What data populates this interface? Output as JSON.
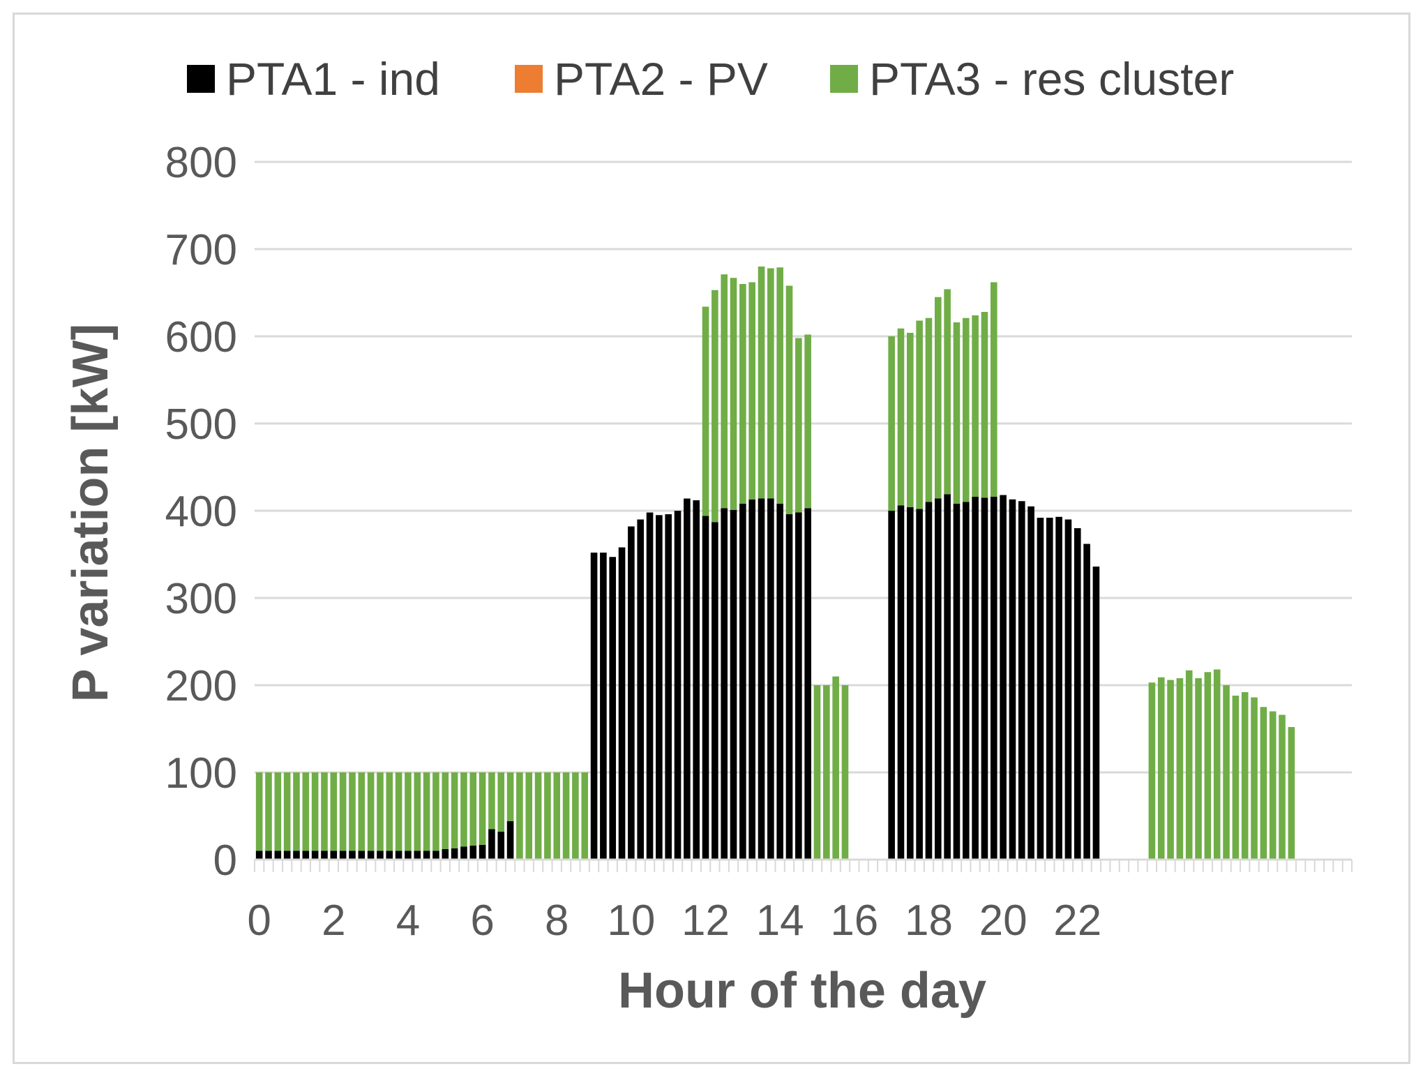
{
  "chart_data": {
    "type": "bar",
    "stacked": true,
    "title": "",
    "xlabel": "Hour of the day",
    "ylabel": "P variation [kW]",
    "ylim": [
      0,
      800
    ],
    "yticks": [
      0,
      100,
      200,
      300,
      400,
      500,
      600,
      700,
      800
    ],
    "xticks": [
      "0",
      "2",
      "4",
      "6",
      "8",
      "10",
      "12",
      "14",
      "16",
      "18",
      "20",
      "22"
    ],
    "intervals_per_hour": 4,
    "legend_position": "top",
    "grid": true,
    "colors": {
      "PTA1 - ind": "#000000",
      "PTA2 - PV": "#ed7d31",
      "PTA3 - res cluster": "#70ad47"
    },
    "series": [
      {
        "name": "PTA1 - ind",
        "values": [
          10,
          10,
          10,
          10,
          10,
          10,
          10,
          10,
          10,
          10,
          10,
          10,
          10,
          10,
          10,
          10,
          10,
          10,
          10,
          10,
          12,
          13,
          15,
          16,
          17,
          35,
          32,
          44,
          0,
          0,
          0,
          0,
          0,
          0,
          0,
          0,
          352,
          352,
          347,
          358,
          382,
          390,
          398,
          395,
          396,
          400,
          414,
          412,
          394,
          387,
          403,
          401,
          408,
          413,
          414,
          414,
          408,
          396,
          398,
          403,
          0,
          0,
          0,
          0,
          0,
          0,
          0,
          0,
          400,
          406,
          404,
          402,
          410,
          414,
          419,
          408,
          410,
          416,
          415,
          416,
          418,
          413,
          411,
          405,
          392,
          392,
          393,
          390,
          380,
          362,
          336,
          0,
          0,
          0,
          0,
          0,
          0,
          0,
          0,
          0,
          0,
          0,
          0,
          0,
          0,
          0,
          0,
          0,
          0,
          0,
          0,
          0,
          0,
          0,
          0,
          0,
          0,
          0
        ]
      },
      {
        "name": "PTA2 - PV",
        "values": [
          0,
          0,
          0,
          0,
          0,
          0,
          0,
          0,
          0,
          0,
          0,
          0,
          0,
          0,
          0,
          0,
          0,
          0,
          0,
          0,
          0,
          0,
          0,
          0,
          0,
          0,
          0,
          0,
          0,
          0,
          0,
          0,
          0,
          0,
          0,
          0,
          0,
          0,
          0,
          0,
          0,
          0,
          0,
          0,
          0,
          0,
          0,
          0,
          0,
          0,
          0,
          0,
          0,
          0,
          0,
          0,
          0,
          0,
          0,
          0,
          0,
          0,
          0,
          0,
          0,
          0,
          0,
          0,
          0,
          0,
          0,
          0,
          0,
          0,
          0,
          0,
          0,
          0,
          0,
          0,
          0,
          0,
          0,
          0,
          0,
          0,
          0,
          0,
          0,
          0,
          0,
          0,
          0,
          0,
          0,
          0,
          0,
          0,
          0,
          0,
          0,
          0,
          0,
          0,
          0,
          0,
          0,
          0,
          0,
          0,
          0,
          0,
          0,
          0,
          0,
          0,
          0
        ]
      },
      {
        "name": "PTA3 - res cluster",
        "values": [
          90,
          90,
          90,
          90,
          90,
          90,
          90,
          90,
          90,
          90,
          90,
          90,
          90,
          90,
          90,
          90,
          90,
          90,
          90,
          90,
          88,
          87,
          85,
          84,
          83,
          65,
          68,
          56,
          100,
          100,
          100,
          100,
          100,
          100,
          100,
          100,
          0,
          0,
          0,
          0,
          0,
          0,
          0,
          0,
          0,
          0,
          0,
          0,
          240,
          266,
          268,
          266,
          252,
          249,
          266,
          264,
          271,
          262,
          200,
          199,
          200,
          200,
          210,
          200,
          0,
          0,
          0,
          0,
          200,
          203,
          200,
          216,
          211,
          231,
          235,
          208,
          211,
          208,
          213,
          246,
          0,
          0,
          0,
          0,
          0,
          0,
          0,
          0,
          0,
          0,
          0,
          0,
          0,
          0,
          0,
          0,
          203,
          209,
          206,
          208,
          217,
          208,
          215,
          218,
          200,
          188,
          192,
          186,
          175,
          170,
          166,
          152
        ]
      }
    ]
  }
}
